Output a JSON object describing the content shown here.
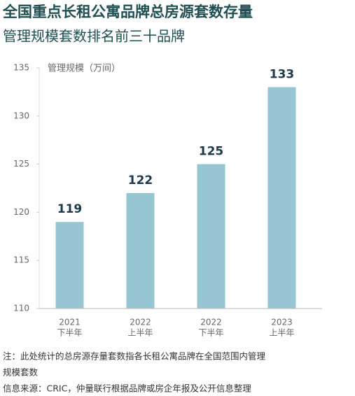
{
  "chart_data": {
    "type": "bar",
    "title": "全国重点长租公寓品牌总房源套数存量",
    "subtitle": "管理规模套数排名前三十品牌",
    "y_label": "管理规模（万间）",
    "categories": [
      [
        "2021",
        "下半年"
      ],
      [
        "2022",
        "上半年"
      ],
      [
        "2022",
        "下半年"
      ],
      [
        "2023",
        "上半年"
      ]
    ],
    "values": [
      119,
      122,
      125,
      133
    ],
    "color": "#97c6d3",
    "ylim": [
      110,
      135
    ],
    "yticks": [
      110,
      115,
      120,
      125,
      130,
      135
    ],
    "notes": [
      "注：此处统计的总房源存量套数指各长租公寓品牌在全国范围内管理",
      "规模套数",
      "信息来源：CRIC，仲量联行根据品牌或房企年报及公开信息整理"
    ]
  }
}
